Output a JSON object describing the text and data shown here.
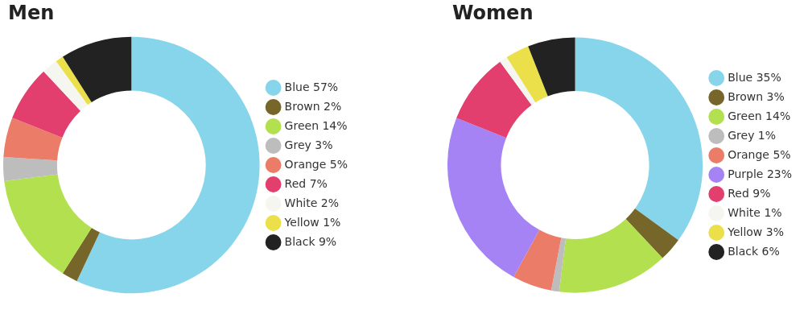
{
  "chart_data": [
    {
      "type": "donut",
      "title": "Men",
      "categories": [
        "Blue",
        "Brown",
        "Green",
        "Grey",
        "Orange",
        "Red",
        "White",
        "Yellow",
        "Black"
      ],
      "values": [
        57,
        2,
        14,
        3,
        5,
        7,
        2,
        1,
        9
      ],
      "value_labels": [
        "57%",
        "2%",
        "14%",
        "3%",
        "5%",
        "7%",
        "2%",
        "1%",
        "9%"
      ],
      "colors": [
        "#87d5eb",
        "#76662a",
        "#b3e04f",
        "#bdbdbd",
        "#eb7c68",
        "#e23e6e",
        "#f6f6f0",
        "#ebe04a",
        "#222222"
      ],
      "legend": "right"
    },
    {
      "type": "donut",
      "title": "Women",
      "categories": [
        "Blue",
        "Brown",
        "Green",
        "Grey",
        "Orange",
        "Purple",
        "Red",
        "White",
        "Yellow",
        "Black"
      ],
      "values": [
        35,
        3,
        14,
        1,
        5,
        23,
        9,
        1,
        3,
        6
      ],
      "value_labels": [
        "35%",
        "3%",
        "14%",
        "1%",
        "5%",
        "23%",
        "9%",
        "1%",
        "3%",
        "6%"
      ],
      "colors": [
        "#87d5eb",
        "#76662a",
        "#b3e04f",
        "#bdbdbd",
        "#eb7c68",
        "#a683f5",
        "#e23e6e",
        "#f6f6f0",
        "#ebe04a",
        "#222222"
      ],
      "legend": "right"
    }
  ]
}
